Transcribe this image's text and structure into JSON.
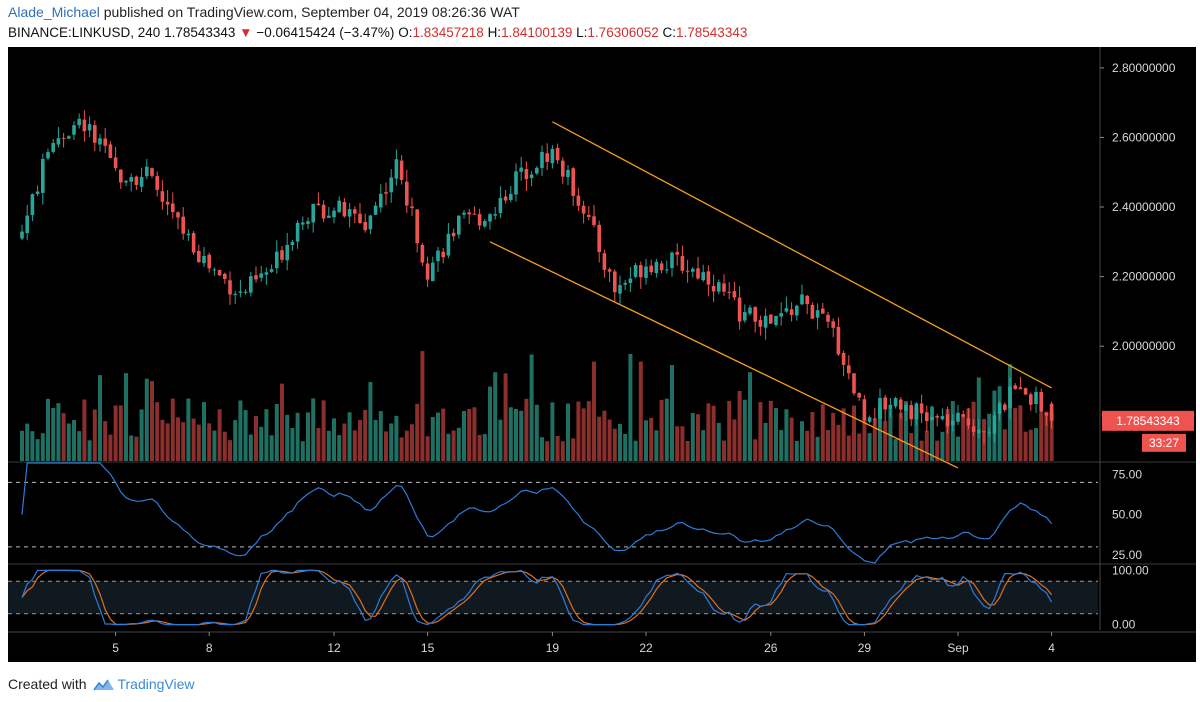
{
  "header": {
    "author": "Alade_Michael",
    "published_text": "published on TradingView.com, September 04, 2019 08:26:36 WAT",
    "symbol": "BINANCE:LINKUSD, 240",
    "last": "1.78543343",
    "direction_icon": "triangle-down",
    "change": "−0.06415424 (−3.47%)",
    "open_label": "O:",
    "open": "1.83457218",
    "high_label": "H:",
    "high": "1.84100139",
    "low_label": "L:",
    "low": "1.76306052",
    "close_label": "C:",
    "close": "1.78543343"
  },
  "footer": {
    "created_with": "Created with",
    "brand": "TradingView"
  },
  "colors": {
    "background": "#000000",
    "up": "#26a69a",
    "down": "#ef5350",
    "volume_up": "#1f6f63",
    "volume_down": "#8a2f2c",
    "channel": "#f39c1f",
    "rsi": "#2e7bd6",
    "stoch_k": "#2e7bd6",
    "stoch_d": "#e0701f",
    "price_tag": "#ef5350"
  },
  "chart_data": {
    "type": "candlestick",
    "interval": "240",
    "price_axis": {
      "ticks": [
        "2.80000000",
        "2.60000000",
        "2.40000000",
        "2.20000000",
        "2.00000000"
      ],
      "ylim": [
        1.67,
        2.86
      ]
    },
    "price_tag": "1.78543343",
    "countdown": "33:27",
    "x_axis": {
      "ticks": [
        "5",
        "8",
        "12",
        "15",
        "19",
        "22",
        "26",
        "29",
        "Sep",
        "4"
      ]
    },
    "anchors": [
      {
        "day": "Aug 2",
        "close": 2.33
      },
      {
        "day": "Aug 3",
        "close": 2.6
      },
      {
        "day": "Aug 4",
        "close": 2.64
      },
      {
        "day": "Aug 5",
        "close": 2.5
      },
      {
        "day": "Aug 6",
        "close": 2.49
      },
      {
        "day": "Aug 7",
        "close": 2.35
      },
      {
        "day": "Aug 8",
        "close": 2.23
      },
      {
        "day": "Aug 9",
        "close": 2.15
      },
      {
        "day": "Aug 10",
        "close": 2.22
      },
      {
        "day": "Aug 11",
        "close": 2.38
      },
      {
        "day": "Aug 12",
        "close": 2.4
      },
      {
        "day": "Aug 13",
        "close": 2.35
      },
      {
        "day": "Aug 14",
        "close": 2.52
      },
      {
        "day": "Aug 15",
        "close": 2.22
      },
      {
        "day": "Aug 16",
        "close": 2.35
      },
      {
        "day": "Aug 17",
        "close": 2.38
      },
      {
        "day": "Aug 18",
        "close": 2.5
      },
      {
        "day": "Aug 19",
        "close": 2.56
      },
      {
        "day": "Aug 20",
        "close": 2.4
      },
      {
        "day": "Aug 21",
        "close": 2.16
      },
      {
        "day": "Aug 22",
        "close": 2.24
      },
      {
        "day": "Aug 23",
        "close": 2.24
      },
      {
        "day": "Aug 24",
        "close": 2.2
      },
      {
        "day": "Aug 25",
        "close": 2.1
      },
      {
        "day": "Aug 26",
        "close": 2.06
      },
      {
        "day": "Aug 27",
        "close": 2.13
      },
      {
        "day": "Aug 28",
        "close": 2.04
      },
      {
        "day": "Aug 29",
        "close": 1.8
      },
      {
        "day": "Aug 30",
        "close": 1.85
      },
      {
        "day": "Aug 31",
        "close": 1.79
      },
      {
        "day": "Sep 1",
        "close": 1.78
      },
      {
        "day": "Sep 2",
        "close": 1.77
      },
      {
        "day": "Sep 3",
        "close": 1.9
      },
      {
        "day": "Sep 4",
        "close": 1.785
      }
    ],
    "channel": {
      "upper": [
        {
          "day": "Aug 19",
          "price": 2.645
        },
        {
          "day": "Sep 4",
          "price": 1.88
        }
      ],
      "lower": [
        {
          "day": "Aug 17",
          "price": 2.3
        },
        {
          "day": "Sep 1",
          "price": 1.65
        }
      ]
    },
    "rsi": {
      "ticks": [
        "75.00",
        "50.00",
        "25.00"
      ],
      "upper_band": 70,
      "lower_band": 30,
      "ylim": [
        20,
        82
      ]
    },
    "stoch": {
      "ticks": [
        "100.00",
        "0.00"
      ],
      "upper_band": 80,
      "lower_band": 20,
      "ylim": [
        -10,
        110
      ]
    }
  }
}
